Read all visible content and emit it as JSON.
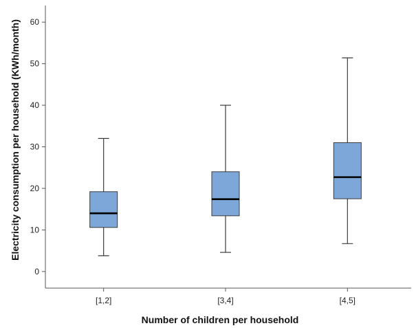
{
  "chart_data": {
    "type": "boxplot",
    "title": "",
    "xlabel": "Number of children per household",
    "ylabel": "Electricity consumption per household (KWh/month)",
    "ylim": [
      -4,
      64
    ],
    "yticks": [
      0,
      10,
      20,
      30,
      40,
      50,
      60
    ],
    "grid": false,
    "categories": [
      "[1,2]",
      "[3,4]",
      "[4,5]"
    ],
    "boxes": [
      {
        "category": "[1,2]",
        "whisker_low": 3.8,
        "q1": 10.6,
        "median": 14.0,
        "q3": 19.2,
        "whisker_high": 32.0
      },
      {
        "category": "[3,4]",
        "whisker_low": 4.6,
        "q1": 13.4,
        "median": 17.4,
        "q3": 24.0,
        "whisker_high": 40.0
      },
      {
        "category": "[4,5]",
        "whisker_low": 6.7,
        "q1": 17.5,
        "median": 22.7,
        "q3": 31.0,
        "whisker_high": 51.4
      }
    ],
    "colors": {
      "box_fill": "#7DA7D9",
      "box_stroke": "#3b3b3b",
      "median": "#000000",
      "axis": "#555555"
    }
  }
}
